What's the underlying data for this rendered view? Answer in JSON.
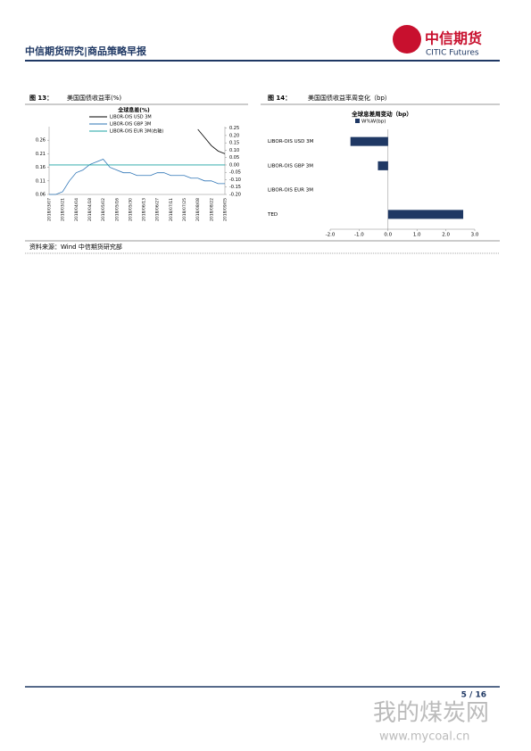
{
  "header": {
    "title": "中信期货研究|商品策略早报",
    "logo_cn": "中信期货",
    "logo_en": "CITIC Futures"
  },
  "figures": [
    {
      "label": "图 13：",
      "caption": "美国国债收益率(%)"
    },
    {
      "label": "图 14：",
      "caption": "美国国债收益率周变化（bp）"
    }
  ],
  "chart_data": [
    {
      "type": "line",
      "title": "全球息差(%)",
      "categories": [
        "2018/03/07",
        null,
        "2018/03/21",
        null,
        "2018/04/04",
        null,
        "2018/04/18",
        null,
        "2018/05/02",
        null,
        "2018/05/16",
        null,
        "2018/05/30",
        null,
        "2018/06/13",
        null,
        "2018/06/27",
        null,
        "2018/07/11",
        null,
        "2018/07/25",
        null,
        "2018/08/08",
        null,
        "2018/08/22",
        null,
        "2018/09/05"
      ],
      "series": [
        {
          "name": "LIBOR-OIS USD 3M",
          "color": "#000000",
          "values": [
            null,
            null,
            null,
            null,
            null,
            null,
            null,
            null,
            null,
            null,
            null,
            null,
            null,
            null,
            null,
            null,
            null,
            null,
            null,
            null,
            null,
            null,
            0.3,
            0.27,
            0.24,
            0.22,
            0.21
          ]
        },
        {
          "name": "LIBOR-OIS GBP 3M",
          "color": "#2e75b6",
          "values": [
            0.06,
            0.06,
            0.07,
            0.11,
            0.14,
            0.15,
            0.17,
            0.18,
            0.19,
            0.16,
            0.15,
            0.14,
            0.14,
            0.13,
            0.13,
            0.13,
            0.14,
            0.14,
            0.13,
            0.13,
            0.13,
            0.12,
            0.12,
            0.11,
            0.11,
            0.1,
            0.1
          ]
        },
        {
          "name": "LIBOR-OIS EUR 3M(右轴)",
          "color": "#1aa3a3",
          "axis": "y2",
          "values": [
            0,
            0,
            0,
            0,
            0,
            0,
            0,
            0,
            0,
            0,
            0,
            0,
            0,
            0,
            0,
            0,
            0,
            0,
            0,
            0,
            0,
            0,
            0,
            0,
            0,
            0,
            0
          ]
        }
      ],
      "ylim": [
        0.06,
        0.31
      ],
      "yticks": [
        0.06,
        0.11,
        0.16,
        0.21,
        0.26
      ],
      "y2lim": [
        -0.2,
        0.26
      ],
      "y2ticks": [
        0.25,
        {
          "value": 0.2,
          "label": "0.20"
        },
        0.15,
        {
          "value": 0.1,
          "label": "0.10"
        },
        0.05,
        {
          "value": 0,
          "label": "0.00"
        },
        -0.05,
        {
          "value": -0.1,
          "label": "-0.10"
        },
        -0.15,
        {
          "value": -0.2,
          "label": "-0.20"
        }
      ]
    },
    {
      "type": "barh",
      "title": "全球息差周变动（bp）",
      "categories": [
        "LIBOR-OIS USD 3M",
        "LIBOR-OIS GBP 3M",
        "LIBOR-OIS EUR 3M",
        "TED"
      ],
      "series": [
        {
          "name": "W%W(bp)",
          "color": "#1f3864",
          "values": [
            -1.3,
            -0.35,
            0,
            2.6
          ]
        }
      ],
      "xlim": [
        -2,
        3
      ],
      "xticks": [
        {
          "value": -2,
          "label": "-2.0"
        },
        {
          "value": -1,
          "label": "-1.0"
        },
        {
          "value": 0,
          "label": "0.0"
        },
        {
          "value": 1,
          "label": "1.0"
        },
        {
          "value": 2,
          "label": "2.0"
        },
        {
          "value": 3,
          "label": "3.0"
        }
      ]
    }
  ],
  "source": "资料来源：Wind  中信期货研究部",
  "footer": {
    "page": "5 / 16"
  },
  "watermark": {
    "name": "我的煤炭网",
    "url": "www.mycoal.cn"
  }
}
